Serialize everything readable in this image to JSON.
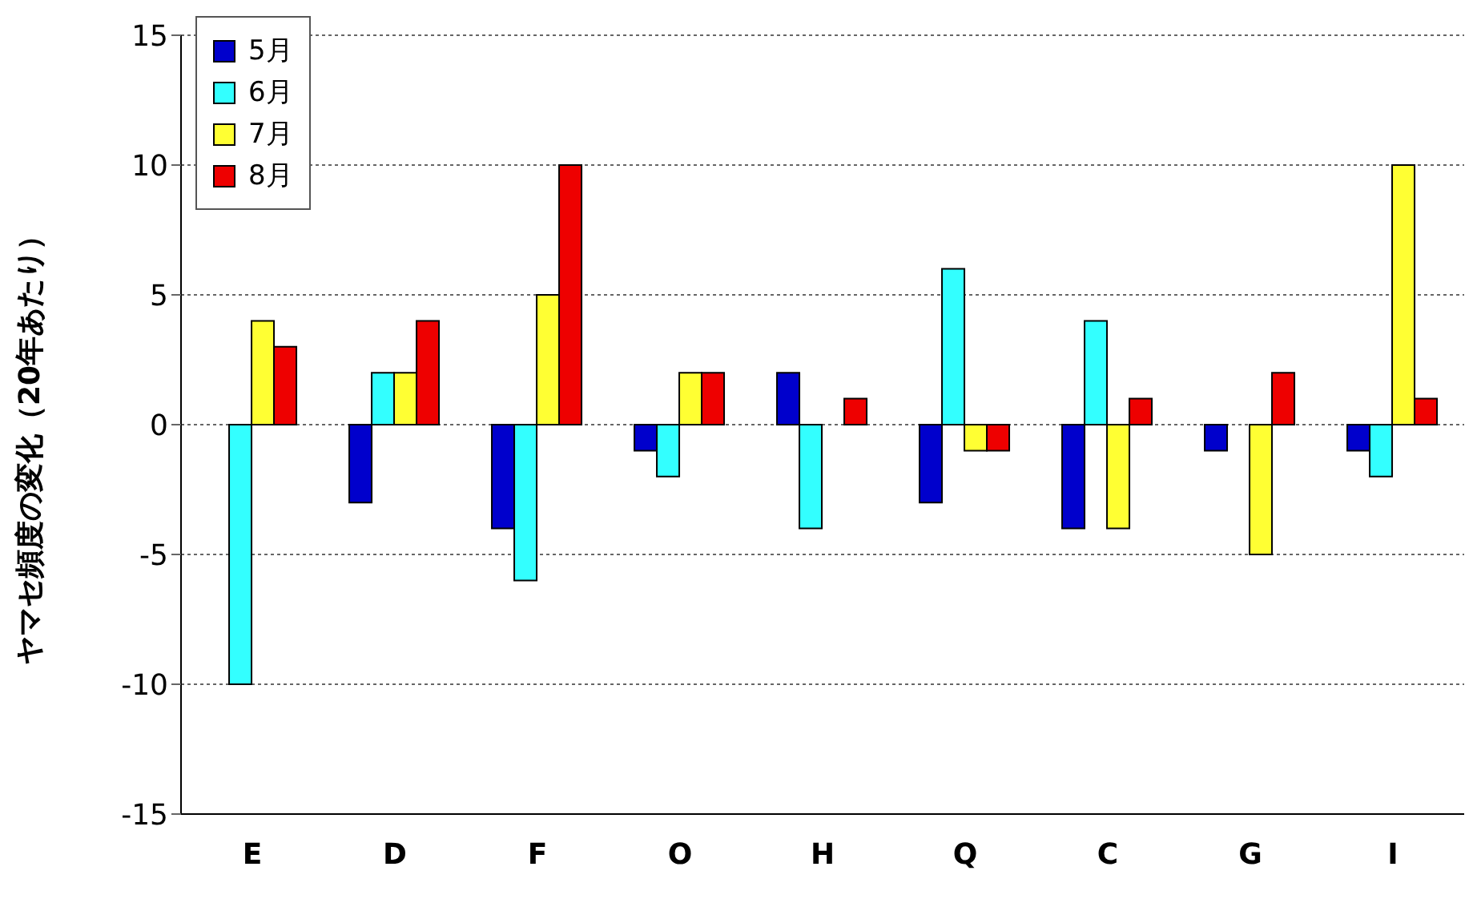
{
  "chart_data": {
    "type": "bar",
    "ylabel": "ヤマセ頻度の変化（20年あたり）",
    "categories": [
      "E",
      "D",
      "F",
      "O",
      "H",
      "Q",
      "C",
      "G",
      "I"
    ],
    "series": [
      {
        "name": "5月",
        "color": "#0000cc",
        "values": [
          0,
          -3,
          -4,
          -1,
          2,
          -3,
          -4,
          -1,
          -1
        ]
      },
      {
        "name": "6月",
        "color": "#33ffff",
        "values": [
          -10,
          2,
          -6,
          -2,
          -4,
          6,
          4,
          0,
          -2
        ]
      },
      {
        "name": "7月",
        "color": "#ffff33",
        "values": [
          4,
          2,
          5,
          2,
          0,
          -1,
          -4,
          -5,
          10
        ]
      },
      {
        "name": "8月",
        "color": "#ee0000",
        "values": [
          3,
          4,
          10,
          2,
          1,
          -1,
          1,
          2,
          1
        ]
      }
    ],
    "ylim": [
      -15,
      15
    ],
    "yticks": [
      -15,
      -10,
      -5,
      0,
      5,
      10,
      15
    ],
    "grid": "y",
    "legend": "top left"
  }
}
